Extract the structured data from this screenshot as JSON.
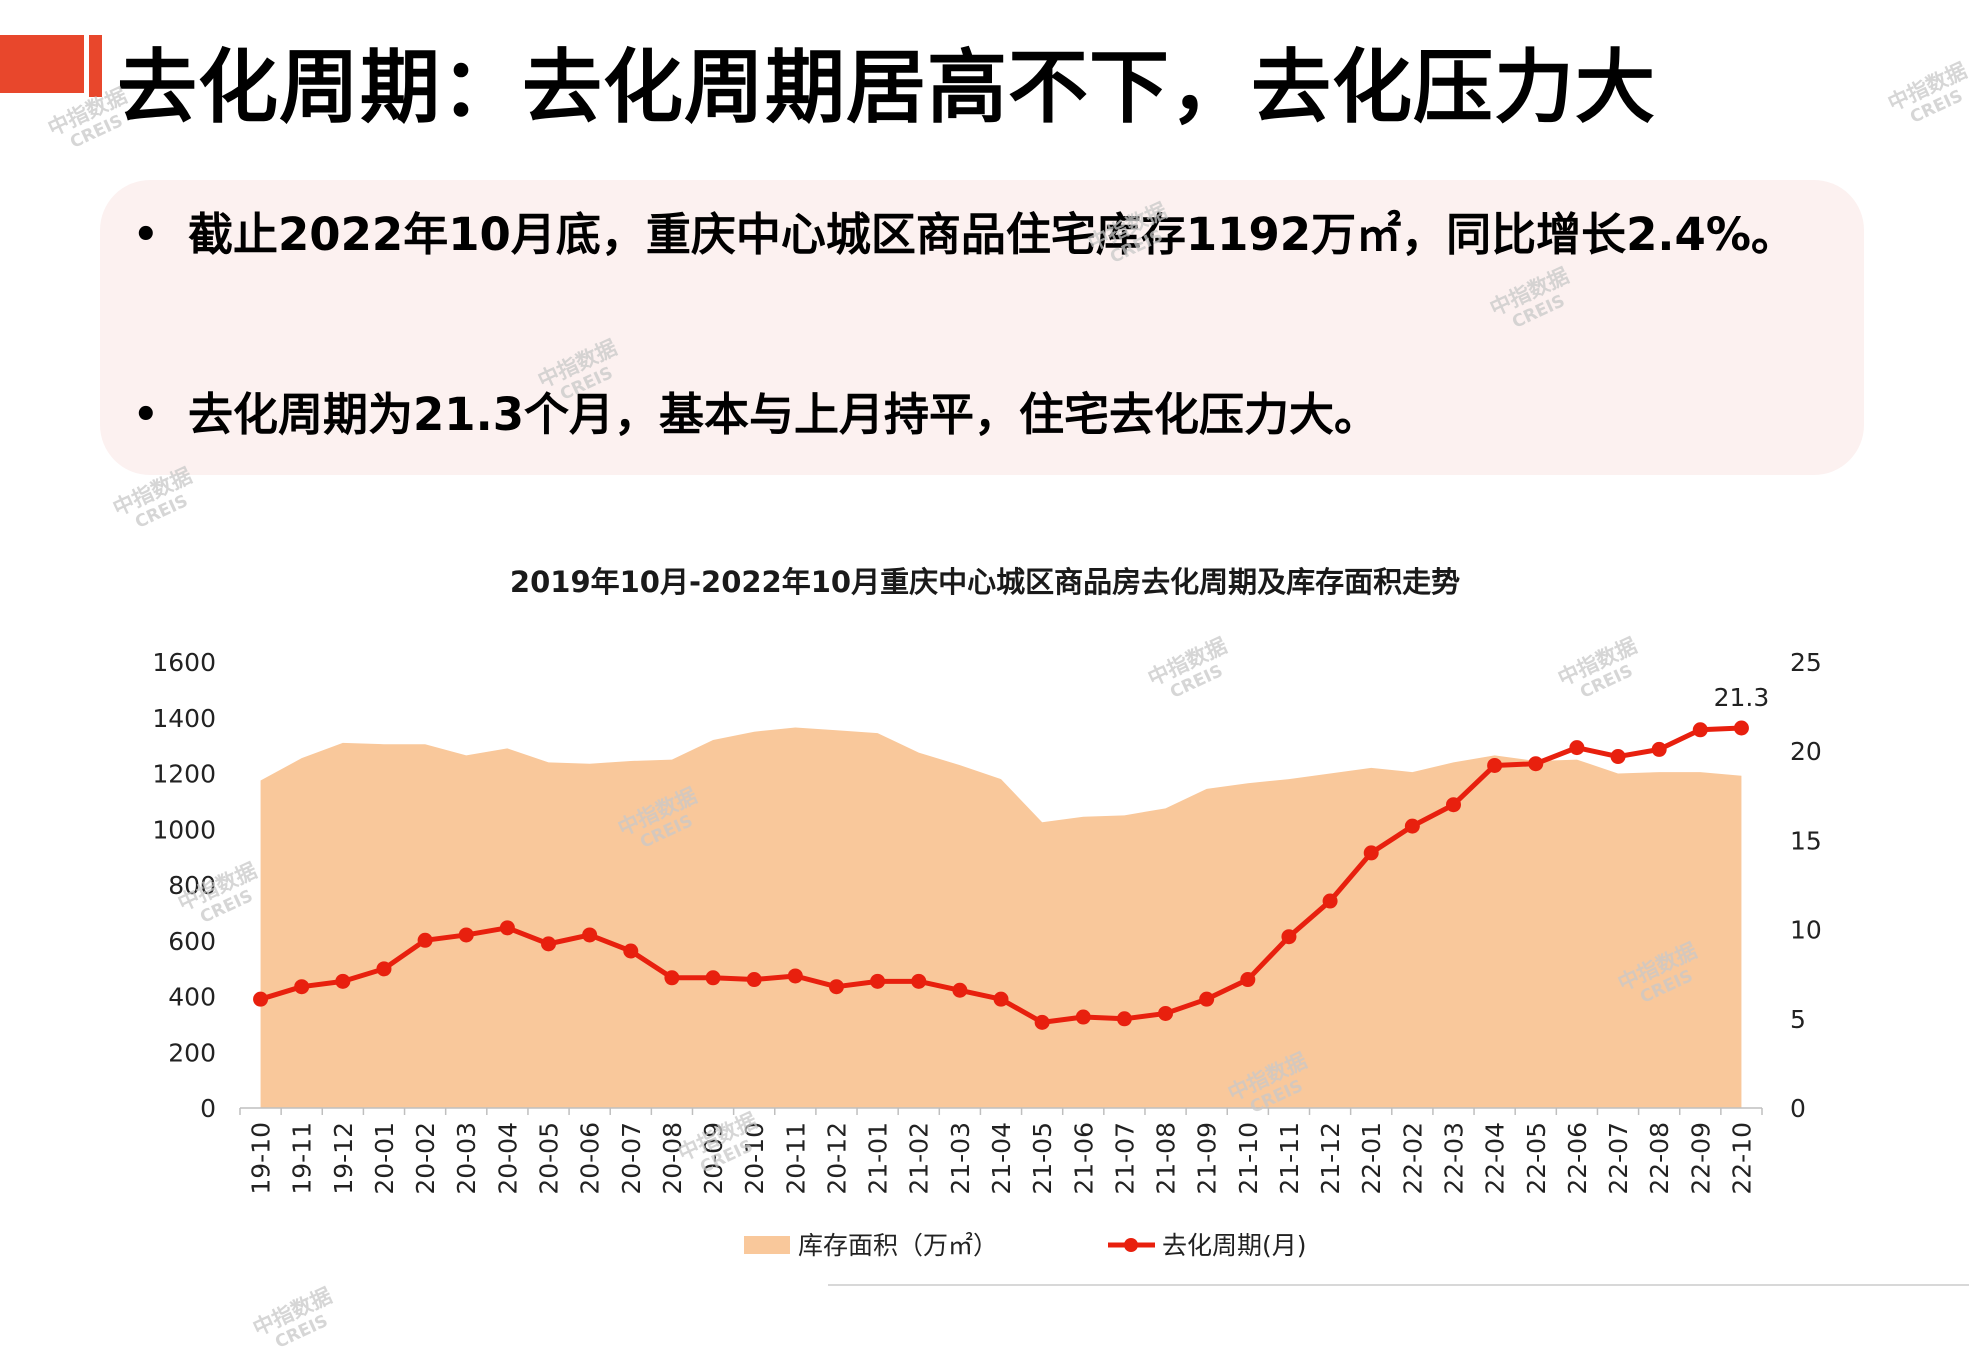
{
  "header": {
    "title": "去化周期：去化周期居高不下，去化压力大",
    "accent_color": "#e8472c"
  },
  "bullets": [
    "截止2022年10月底，重庆中心城区商品住宅库存1192万㎡，同比增长2.4%。",
    "去化周期为21.3个月，基本与上月持平，住宅去化压力大。"
  ],
  "watermark": {
    "cn": "中指数据",
    "en": "CREIS"
  },
  "chart_data": {
    "type": "area+line",
    "title": "2019年10月-2022年10月重庆中心城区商品房去化周期及库存面积走势",
    "categories": [
      "19-10",
      "19-11",
      "19-12",
      "20-01",
      "20-02",
      "20-03",
      "20-04",
      "20-05",
      "20-06",
      "20-07",
      "20-08",
      "20-09",
      "20-10",
      "20-11",
      "20-12",
      "21-01",
      "21-02",
      "21-03",
      "21-04",
      "21-05",
      "21-06",
      "21-07",
      "21-08",
      "21-09",
      "21-10",
      "21-11",
      "21-12",
      "22-01",
      "22-02",
      "22-03",
      "22-04",
      "22-05",
      "22-06",
      "22-07",
      "22-08",
      "22-09",
      "22-10"
    ],
    "series": [
      {
        "name": "库存面积（万㎡）",
        "type": "area",
        "axis": "left",
        "color": "#f9c89b",
        "values": [
          1175,
          1255,
          1310,
          1305,
          1305,
          1265,
          1290,
          1240,
          1235,
          1245,
          1250,
          1320,
          1350,
          1365,
          1355,
          1345,
          1275,
          1230,
          1180,
          1025,
          1045,
          1050,
          1075,
          1145,
          1165,
          1180,
          1200,
          1220,
          1205,
          1240,
          1265,
          1245,
          1250,
          1200,
          1205,
          1205,
          1192
        ]
      },
      {
        "name": "去化周期(月)",
        "type": "line",
        "axis": "right",
        "color": "#e8200e",
        "values": [
          6.1,
          6.8,
          7.1,
          7.8,
          9.4,
          9.7,
          10.1,
          9.2,
          9.7,
          8.8,
          7.3,
          7.3,
          7.2,
          7.4,
          6.8,
          7.1,
          7.1,
          6.6,
          6.1,
          4.8,
          5.1,
          5.0,
          5.3,
          6.1,
          7.2,
          9.6,
          11.6,
          14.3,
          15.8,
          17.0,
          19.2,
          19.3,
          20.2,
          19.7,
          20.1,
          21.2,
          21.3
        ]
      }
    ],
    "y_left": {
      "min": 0,
      "max": 1600,
      "ticks": [
        0,
        200,
        400,
        600,
        800,
        1000,
        1200,
        1400,
        1600
      ]
    },
    "y_right": {
      "min": 0,
      "max": 25,
      "ticks": [
        0,
        5,
        10,
        15,
        20,
        25
      ]
    },
    "annotations": [
      {
        "series": 1,
        "index": 36,
        "label": "21.3"
      }
    ],
    "legend": {
      "position": "bottom"
    }
  }
}
